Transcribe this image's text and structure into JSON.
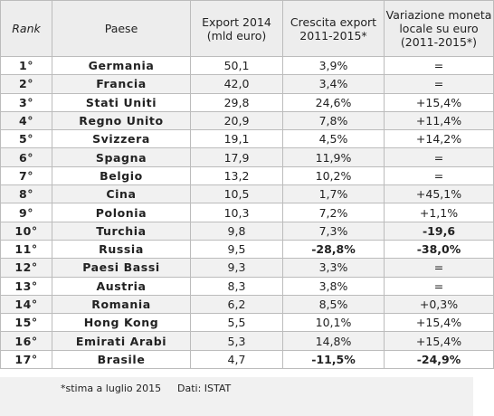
{
  "headers": {
    "rank": "Rank",
    "country": "Paese",
    "export_line1": "Export 2014",
    "export_line2": "(mld euro)",
    "growth_line1": "Crescita export",
    "growth_line2": "2011-2015*",
    "currency_line1": "Variazione moneta",
    "currency_line2": "locale su euro",
    "currency_line3": "(2011-2015*)"
  },
  "rows": [
    {
      "rank": "1°",
      "country": "Germania",
      "export": "50,1",
      "growth": "3,9%",
      "currency": "="
    },
    {
      "rank": "2°",
      "country": "Francia",
      "export": "42,0",
      "growth": "3,4%",
      "currency": "="
    },
    {
      "rank": "3°",
      "country": "Stati Uniti",
      "export": "29,8",
      "growth": "24,6%",
      "currency": "+15,4%"
    },
    {
      "rank": "4°",
      "country": "Regno Unito",
      "export": "20,9",
      "growth": "7,8%",
      "currency": "+11,4%"
    },
    {
      "rank": "5°",
      "country": "Svizzera",
      "export": "19,1",
      "growth": "4,5%",
      "currency": "+14,2%"
    },
    {
      "rank": "6°",
      "country": "Spagna",
      "export": "17,9",
      "growth": "11,9%",
      "currency": "="
    },
    {
      "rank": "7°",
      "country": "Belgio",
      "export": "13,2",
      "growth": "10,2%",
      "currency": "="
    },
    {
      "rank": "8°",
      "country": "Cina",
      "export": "10,5",
      "growth": "1,7%",
      "currency": "+45,1%"
    },
    {
      "rank": "9°",
      "country": "Polonia",
      "export": "10,3",
      "growth": "7,2%",
      "currency": "+1,1%"
    },
    {
      "rank": "10°",
      "country": "Turchia",
      "export": "9,8",
      "growth": "7,3%",
      "currency": "-19,6",
      "currency_negative": true
    },
    {
      "rank": "11°",
      "country": "Russia",
      "export": "9,5",
      "growth": "-28,8%",
      "growth_negative": true,
      "currency": "-38,0%",
      "currency_negative": true
    },
    {
      "rank": "12°",
      "country": "Paesi Bassi",
      "export": "9,3",
      "growth": "3,3%",
      "currency": "="
    },
    {
      "rank": "13°",
      "country": "Austria",
      "export": "8,3",
      "growth": "3,8%",
      "currency": "="
    },
    {
      "rank": "14°",
      "country": "Romania",
      "export": "6,2",
      "growth": "8,5%",
      "currency": "+0,3%"
    },
    {
      "rank": "15°",
      "country": "Hong Kong",
      "export": "5,5",
      "growth": "10,1%",
      "currency": "+15,4%"
    },
    {
      "rank": "16°",
      "country": "Emirati Arabi",
      "export": "5,3",
      "growth": "14,8%",
      "currency": "+15,4%"
    },
    {
      "rank": "17°",
      "country": "Brasile",
      "export": "4,7",
      "growth": "-11,5%",
      "growth_negative": true,
      "currency": "-24,9%",
      "currency_negative": true
    }
  ],
  "footer": {
    "note": "*stima a luglio 2015",
    "source": "Dati: ISTAT"
  },
  "colors": {
    "negative": "#c00000",
    "header_bg": "#ededed",
    "stripe_bg": "#f1f1f1",
    "border": "#bcbcbc"
  }
}
